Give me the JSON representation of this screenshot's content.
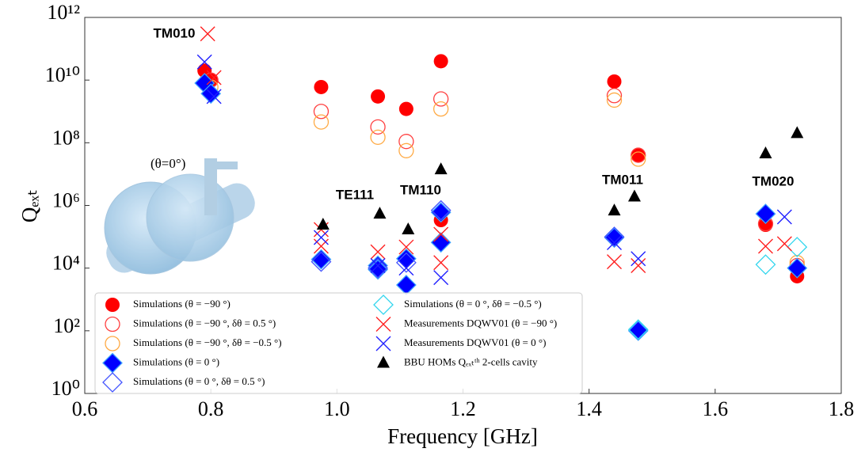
{
  "chart_data": {
    "type": "scatter",
    "x_label": "Frequency [GHz]",
    "y_label": "Qₑₓₜ",
    "y_scale": "log",
    "xlim": [
      0.6,
      1.8
    ],
    "xticks": [
      0.6,
      0.8,
      {
        "value": 1.0,
        "label": "1.0"
      },
      1.2,
      1.4,
      1.6,
      1.8
    ],
    "ylim": [
      1,
      1000000000000.0
    ],
    "yticks": [
      {
        "value": 1,
        "label": "10⁰"
      },
      {
        "value": 100,
        "label": "10²"
      },
      {
        "value": 10000,
        "label": "10⁴"
      },
      {
        "value": 1000000,
        "label": "10⁶"
      },
      {
        "value": 100000000,
        "label": "10⁸"
      },
      {
        "value": 10000000000,
        "label": "10¹⁰"
      },
      {
        "value": 1000000000000,
        "label": "10¹²"
      }
    ],
    "legend_position": "lower left",
    "inset_label": "(θ=0°)",
    "annotations": [
      "TM010",
      "TE111",
      "TM110",
      "TM011",
      "TM020"
    ],
    "series": [
      {
        "name": "Simulations (θ = −90 °)",
        "marker": "circle",
        "color": "#ff0000",
        "x": [
          0.79,
          0.8,
          0.975,
          1.065,
          1.11,
          1.165,
          1.165,
          1.44,
          1.478,
          1.68,
          1.73
        ],
        "values": [
          20000000000.0,
          10000000000.0,
          6000000000.0,
          3000000000.0,
          1200000000.0,
          40000000000.0,
          340000,
          9000000000.0,
          40000000,
          240000,
          5500
        ]
      },
      {
        "name": "Simulations (θ = −90 °, δθ = 0.5 °)",
        "marker": "circle-open",
        "color": "#ff4040",
        "x": [
          0.8,
          0.975,
          1.065,
          1.11,
          1.165,
          1.44,
          1.478,
          1.68,
          1.73
        ],
        "values": [
          10000000000.0,
          1000000000.0,
          320000000,
          110000000,
          2500000000.0,
          3200000000.0,
          40000000,
          260000,
          12000
        ]
      },
      {
        "name": "Simulations (θ = −90 °, δθ = −0.5 °)",
        "marker": "circle-open",
        "color": "#ffaa44",
        "x": [
          0.8,
          0.975,
          1.065,
          1.11,
          1.165,
          1.44,
          1.478,
          1.73
        ],
        "values": [
          6000000000.0,
          460000000,
          150000000,
          56000000,
          1200000000.0,
          2300000000.0,
          30000000,
          15000
        ]
      },
      {
        "name": "Simulations (θ = 0 °)",
        "marker": "diamond",
        "color": "#0000ff",
        "x": [
          0.79,
          0.8,
          0.975,
          1.065,
          1.065,
          1.11,
          1.11,
          1.165,
          1.165,
          1.44,
          1.478,
          1.68,
          1.73
        ],
        "values": [
          8000000000.0,
          3700000000.0,
          19000,
          12000,
          9000,
          20000,
          2900,
          600000,
          66000,
          94000,
          100,
          540000,
          10000
        ]
      },
      {
        "name": "Simulations (θ = 0 °, δθ = 0.5 °)",
        "marker": "diamond-open",
        "color": "#4455ff",
        "x": [
          0.975,
          1.065,
          1.11,
          1.165,
          1.44
        ],
        "values": [
          16000,
          10000,
          15000,
          700000,
          100000
        ]
      },
      {
        "name": "Simulations (θ = 0 °, δθ = −0.5 °)",
        "marker": "diamond-open",
        "color": "#33d6ee",
        "x": [
          1.478,
          1.68,
          1.73
        ],
        "values": [
          110,
          13000,
          47000
        ]
      },
      {
        "name": "Measurements DQWV01 (θ = −90 °)",
        "marker": "x",
        "color": "#ff2020",
        "x": [
          0.795,
          0.805,
          0.975,
          0.975,
          1.065,
          1.11,
          1.165,
          1.165,
          1.44,
          1.478,
          1.68,
          1.71
        ],
        "values": [
          300000000000.0,
          12000000000.0,
          170000,
          50000,
          33000,
          47000,
          120000,
          15000,
          16000,
          12000,
          50000,
          60000
        ]
      },
      {
        "name": "Measurements DQWV01 (θ = 0 °)",
        "marker": "x",
        "color": "#2020ff",
        "x": [
          0.79,
          0.805,
          0.975,
          1.065,
          1.11,
          1.165,
          1.44,
          1.478,
          1.71
        ],
        "values": [
          38000000000.0,
          3000000000.0,
          95000,
          12000,
          10000,
          5000,
          65000,
          20000,
          430000
        ]
      },
      {
        "name": "BBU HOMs Qₑₓₜᵗʰ 2-cells cavity",
        "marker": "triangle",
        "color": "#000000",
        "x": [
          0.978,
          1.068,
          1.113,
          1.165,
          1.44,
          1.472,
          1.68,
          1.73
        ],
        "values": [
          240000,
          540000,
          170000,
          14000000,
          680000,
          1900000,
          45000000,
          200000000
        ]
      }
    ]
  }
}
